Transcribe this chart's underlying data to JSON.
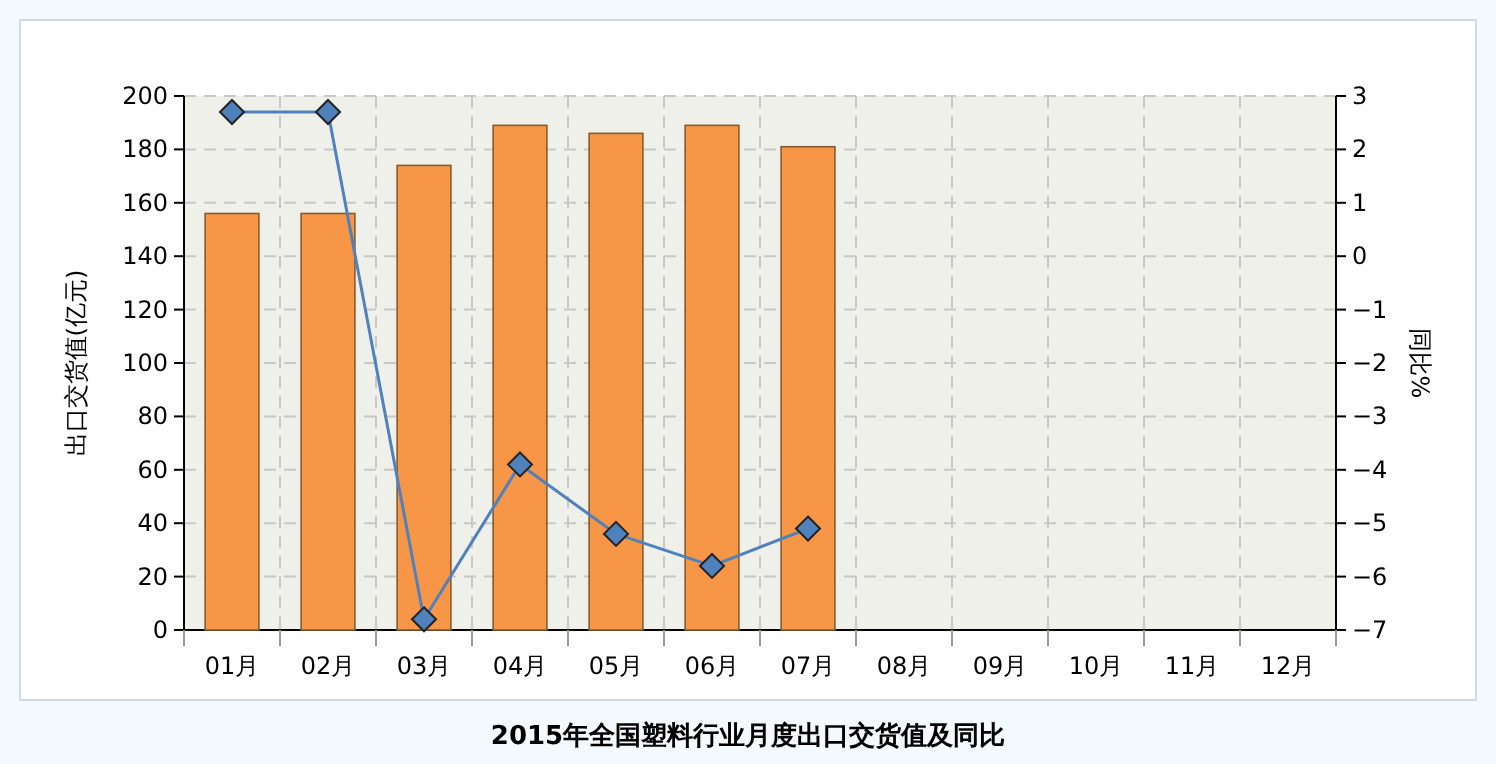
{
  "chart_data": {
    "type": "bar",
    "title": "2015年全国塑料行业月度出口交货值及同比",
    "ylabel": "出口交货值(亿元)",
    "y2label": "同比%",
    "categories": [
      "01月",
      "02月",
      "03月",
      "04月",
      "05月",
      "06月",
      "07月",
      "08月",
      "09月",
      "10月",
      "11月",
      "12月"
    ],
    "series": [
      {
        "color": "#f79646",
        "values": [
          156,
          156,
          174,
          189,
          186,
          189,
          181,
          null,
          null,
          null,
          null,
          null
        ]
      },
      {
        "type": "line",
        "axis": "y2",
        "color": "#4f81bd",
        "values": [
          2.7,
          2.7,
          -6.8,
          -3.9,
          -5.2,
          -5.8,
          -5.1,
          null,
          null,
          null,
          null,
          null
        ]
      }
    ],
    "ylim": [
      0,
      200
    ],
    "yticks": [
      0,
      20,
      40,
      60,
      80,
      100,
      120,
      140,
      160,
      180,
      200
    ],
    "y2lim": [
      -7,
      3
    ],
    "y2ticks": [
      -7,
      -6,
      -5,
      -4,
      -3,
      -2,
      -1,
      0,
      1,
      2,
      3
    ],
    "grid": true,
    "marker": "diamond",
    "line_style": "solid"
  }
}
